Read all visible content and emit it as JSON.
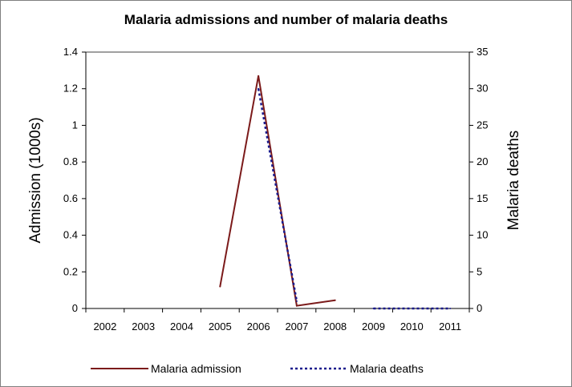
{
  "chart_data": {
    "type": "line",
    "title": "Malaria admissions and number of malaria deaths",
    "categories": [
      "2002",
      "2003",
      "2004",
      "2005",
      "2006",
      "2007",
      "2008",
      "2009",
      "2010",
      "2011"
    ],
    "ylabel": "Admission (1000s)",
    "y2label": "Malaria deaths",
    "ylim": [
      0,
      1.4
    ],
    "y2lim": [
      0,
      35
    ],
    "yticks": [
      "0",
      "0.2",
      "0.4",
      "0.6",
      "0.8",
      "1",
      "1.2",
      "1.4"
    ],
    "y2ticks": [
      "0",
      "5",
      "10",
      "15",
      "20",
      "25",
      "30",
      "35"
    ],
    "legend_position": "bottom",
    "grid": false,
    "series": [
      {
        "name": "Malaria admission",
        "axis": "left",
        "style": "solid",
        "color": "#7b1a1a",
        "points": [
          {
            "x": 2005,
            "y": 0.12
          },
          {
            "x": 2006,
            "y": 1.27
          },
          {
            "x": 2007,
            "y": 0.015
          },
          {
            "x": 2008,
            "y": 0.045
          }
        ]
      },
      {
        "name": "Malaria deaths",
        "axis": "right",
        "style": "dotted",
        "color": "#1a1a8c",
        "segments": [
          [
            {
              "x": 2006,
              "y": 30
            },
            {
              "x": 2007,
              "y": 1
            }
          ],
          [
            {
              "x": 2009,
              "y": 0
            },
            {
              "x": 2011,
              "y": 0
            }
          ]
        ]
      }
    ]
  }
}
